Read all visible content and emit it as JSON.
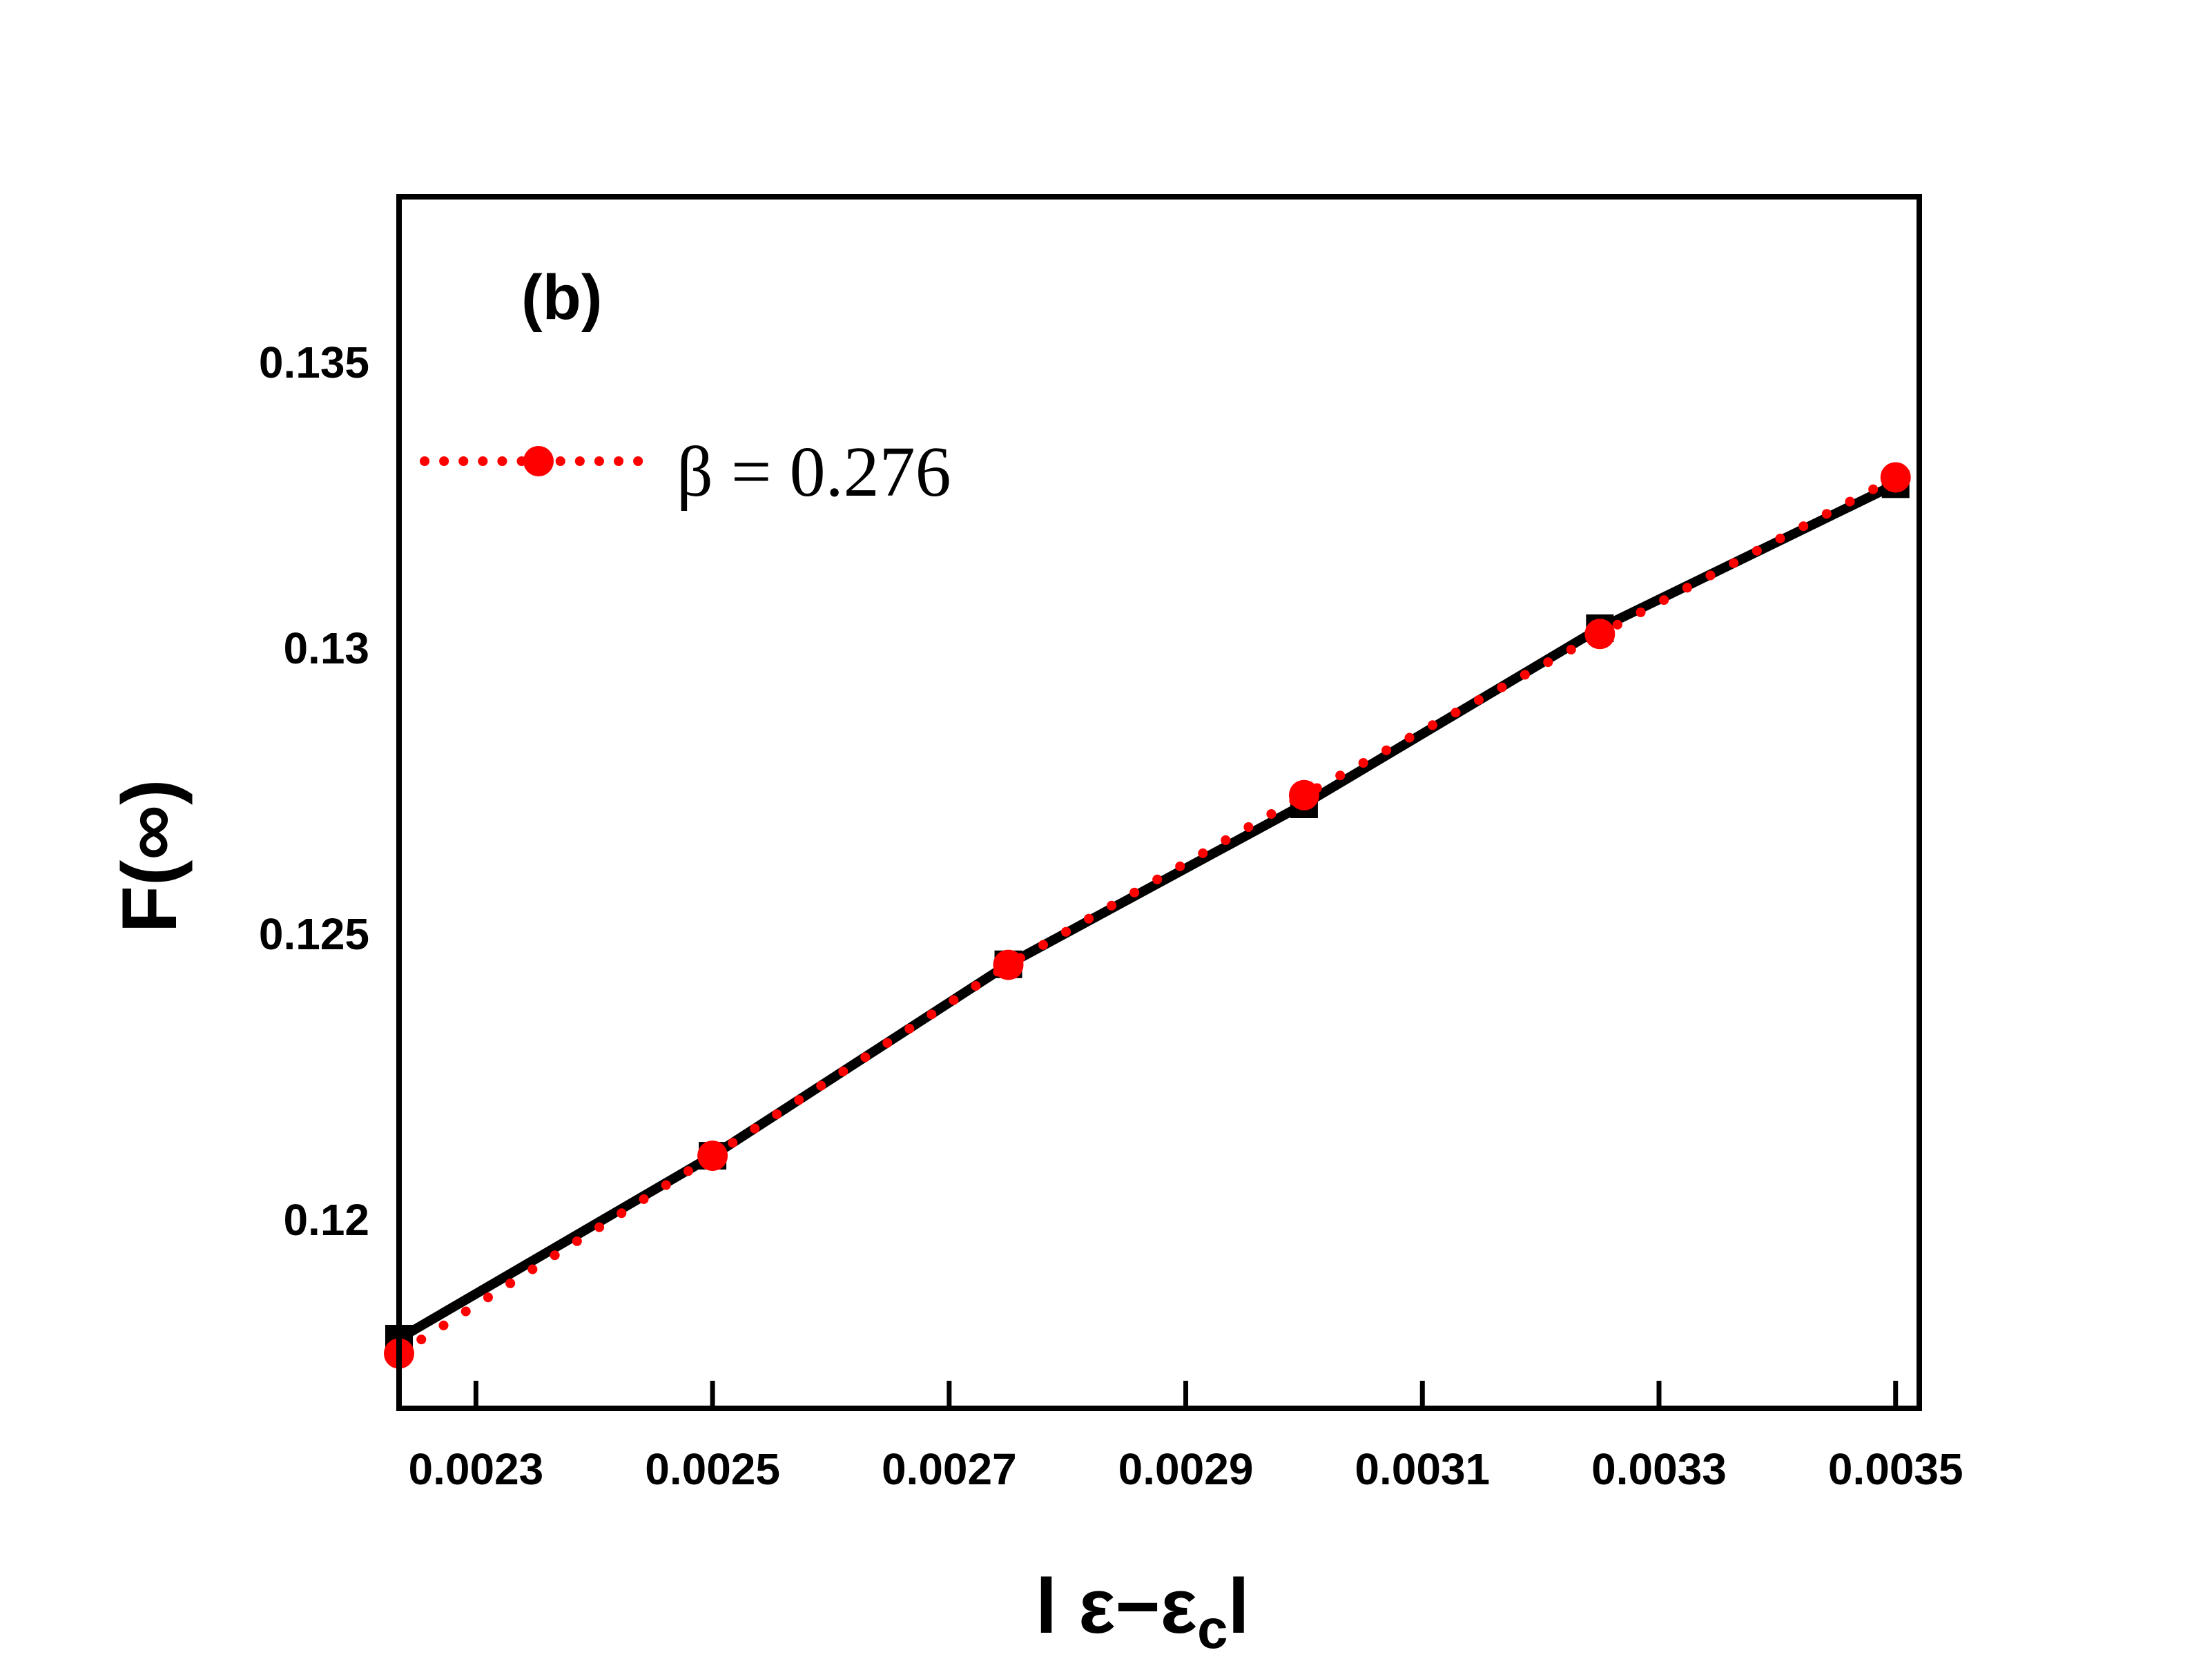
{
  "chart_data": {
    "type": "line",
    "panel_label": "(b)",
    "xlabel": "l ε−ε",
    "xlabel_sub": "c",
    "xlabel_end": "l",
    "ylabel": "F(∞)",
    "xlim": [
      0.002235,
      0.00352
    ],
    "ylim": [
      0.1167,
      0.1379
    ],
    "xticks": [
      0.0023,
      0.0025,
      0.0027,
      0.0029,
      0.0031,
      0.0033,
      0.0035
    ],
    "xtick_labels": [
      "0.0023",
      "0.0025",
      "0.0027",
      "0.0029",
      "0.0031",
      "0.0033",
      "0.0035"
    ],
    "yticks": [
      0.12,
      0.125,
      0.13,
      0.135
    ],
    "ytick_labels": [
      "0.12",
      "0.125",
      "0.13",
      "0.135"
    ],
    "legend_position": "top-left",
    "series": [
      {
        "name": "",
        "style": "solid-square",
        "color": "#000000",
        "x": [
          0.002235,
          0.0025,
          0.00275,
          0.003,
          0.00325,
          0.0035
        ],
        "y": [
          0.11792,
          0.12112,
          0.12447,
          0.12727,
          0.13035,
          0.13287
        ]
      },
      {
        "name": "β = 0.276",
        "style": "dotted-circle",
        "color": "#ff0000",
        "x": [
          0.002235,
          0.0025,
          0.00275,
          0.003,
          0.00325,
          0.0035
        ],
        "y": [
          0.11766,
          0.12112,
          0.12446,
          0.12743,
          0.13025,
          0.13299
        ]
      }
    ]
  }
}
